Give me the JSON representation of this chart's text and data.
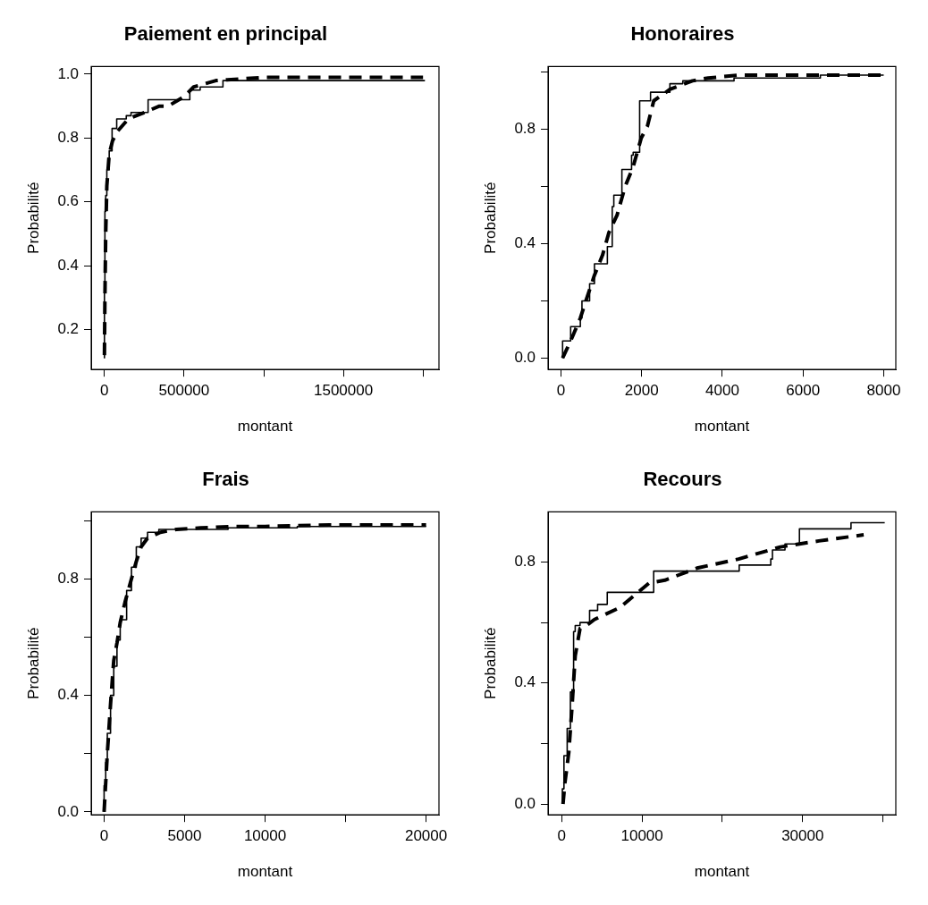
{
  "chart_data": [
    {
      "type": "line",
      "title": "Paiement en principal",
      "xlabel": "montant",
      "ylabel": "Probabilité",
      "xlim": [
        -83000,
        2100000
      ],
      "xticks": [
        0,
        500000,
        {
          "value": 1000000,
          "label": null
        },
        1500000,
        {
          "value": 2000000,
          "label": null
        }
      ],
      "ylim": [
        0.075,
        1.024
      ],
      "yticks": [
        0.2,
        0.4,
        0.6,
        0.8,
        {
          "value": 1,
          "label": "1.0"
        }
      ],
      "series": [
        {
          "type": "step",
          "color": "#000000",
          "x": [
            0,
            3000,
            8000,
            15000,
            30000,
            48000,
            77000,
            137000,
            167000,
            274000,
            333000,
            536000,
            601000,
            744000,
            780000,
            2012000
          ],
          "values": [
            0.11,
            0.35,
            0.57,
            0.62,
            0.7,
            0.76,
            0.83,
            0.86,
            0.87,
            0.88,
            0.92,
            0.92,
            0.95,
            0.96,
            0.98,
            0.98
          ]
        },
        {
          "type": "line",
          "line_style": "dashed",
          "color": "#000000",
          "x": [
            0,
            3000,
            8000,
            15000,
            30000,
            50000,
            80000,
            150000,
            250000,
            345000,
            400000,
            500000,
            560000,
            700000,
            1000000,
            1500000,
            2000000
          ],
          "values": [
            0.12,
            0.3,
            0.5,
            0.65,
            0.75,
            0.79,
            0.82,
            0.86,
            0.88,
            0.9,
            0.9,
            0.93,
            0.96,
            0.98,
            0.99,
            0.99,
            0.99
          ]
        }
      ]
    },
    {
      "type": "line",
      "title": "Honoraires",
      "xlabel": "montant",
      "ylabel": "Probabilité",
      "xlim": [
        -320,
        8300
      ],
      "xticks": [
        0,
        2000,
        4000,
        6000,
        8000
      ],
      "ylim": [
        -0.04,
        1.02
      ],
      "yticks": [
        {
          "value": 0,
          "label": "0.0"
        },
        {
          "value": 0.2,
          "label": null
        },
        0.4,
        {
          "value": 0.6,
          "label": null
        },
        0.8,
        {
          "value": 1,
          "label": null
        }
      ],
      "series": [
        {
          "type": "step",
          "color": "#000000",
          "x": [
            40,
            240,
            480,
            520,
            710,
            830,
            950,
            1150,
            1270,
            1310,
            1510,
            1750,
            1790,
            1950,
            2000,
            2220,
            2700,
            3020,
            3650,
            4290,
            4370,
            6430,
            8000
          ],
          "values": [
            0,
            0.06,
            0.11,
            0.14,
            0.2,
            0.26,
            0.33,
            0.33,
            0.39,
            0.53,
            0.57,
            0.66,
            0.71,
            0.72,
            0.9,
            0.9,
            0.93,
            0.96,
            0.97,
            0.97,
            0.98,
            0.98,
            0.99
          ]
        },
        {
          "type": "line",
          "line_style": "dashed",
          "color": "#000000",
          "x": [
            40,
            240,
            480,
            640,
            830,
            1030,
            1190,
            1390,
            1590,
            1790,
            1990,
            2140,
            2300,
            2700,
            3260,
            3650,
            4450,
            8000
          ],
          "values": [
            0,
            0.06,
            0.14,
            0.21,
            0.29,
            0.36,
            0.44,
            0.5,
            0.6,
            0.67,
            0.77,
            0.81,
            0.9,
            0.94,
            0.97,
            0.98,
            0.99,
            0.99
          ]
        }
      ]
    },
    {
      "type": "line",
      "title": "Frais",
      "xlabel": "montant",
      "ylabel": "Probabilité",
      "xlim": [
        -800,
        20800
      ],
      "xticks": [
        0,
        5000,
        10000,
        {
          "value": 15000,
          "label": null
        },
        20000
      ],
      "ylim": [
        -0.01,
        1.03
      ],
      "yticks": [
        {
          "value": 0,
          "label": "0.0"
        },
        {
          "value": 0.2,
          "label": null
        },
        0.4,
        {
          "value": 0.6,
          "label": null
        },
        0.8,
        {
          "value": 1,
          "label": null
        }
      ],
      "series": [
        {
          "type": "step",
          "color": "#000000",
          "x": [
            0,
            100,
            200,
            400,
            600,
            800,
            1000,
            1400,
            1700,
            2000,
            2300,
            2700,
            3400,
            4200,
            5200,
            5600,
            7700,
            10000,
            12000,
            15000,
            17800,
            20000
          ],
          "values": [
            0,
            0.09,
            0.17,
            0.27,
            0.4,
            0.5,
            0.59,
            0.66,
            0.76,
            0.84,
            0.91,
            0.94,
            0.96,
            0.97,
            0.97,
            0.97,
            0.97,
            0.975,
            0.975,
            0.98,
            0.98,
            0.98
          ]
        },
        {
          "type": "line",
          "line_style": "dashed",
          "color": "#000000",
          "x": [
            0,
            200,
            400,
            600,
            800,
            1000,
            1300,
            1700,
            2000,
            2300,
            2700,
            3500,
            4500,
            6000,
            8000,
            10000,
            14000,
            20000
          ],
          "values": [
            0,
            0.2,
            0.37,
            0.52,
            0.58,
            0.65,
            0.72,
            0.8,
            0.86,
            0.91,
            0.94,
            0.96,
            0.97,
            0.975,
            0.98,
            0.98,
            0.985,
            0.985
          ]
        }
      ]
    },
    {
      "type": "line",
      "title": "Recours",
      "xlabel": "montant",
      "ylabel": "Probabilité",
      "xlim": [
        -1700,
        41600
      ],
      "xticks": [
        0,
        10000,
        {
          "value": 20000,
          "label": null
        },
        30000,
        {
          "value": 40000,
          "label": null
        }
      ],
      "ylim": [
        -0.036,
        0.966
      ],
      "yticks": [
        {
          "value": 0,
          "label": "0.0"
        },
        {
          "value": 0.2,
          "label": null
        },
        0.4,
        {
          "value": 0.6,
          "label": null
        },
        0.8
      ],
      "series": [
        {
          "type": "step",
          "color": "#000000",
          "x": [
            80,
            280,
            680,
            1080,
            1480,
            1680,
            2280,
            3470,
            4470,
            5670,
            7860,
            11450,
            12850,
            22100,
            22230,
            26030,
            26240,
            27800,
            29600,
            30630,
            36020,
            36340,
            40220
          ],
          "values": [
            0,
            0.05,
            0.16,
            0.25,
            0.37,
            0.57,
            0.59,
            0.6,
            0.64,
            0.66,
            0.7,
            0.7,
            0.77,
            0.77,
            0.79,
            0.79,
            0.81,
            0.84,
            0.86,
            0.91,
            0.91,
            0.93,
            0.93
          ]
        },
        {
          "type": "line",
          "line_style": "dashed",
          "color": "#000000",
          "x": [
            160,
            400,
            880,
            1280,
            1680,
            2280,
            3070,
            4070,
            7260,
            10850,
            12850,
            16840,
            22030,
            27230,
            32010,
            37600
          ],
          "values": [
            0,
            0.07,
            0.17,
            0.32,
            0.49,
            0.58,
            0.59,
            0.61,
            0.65,
            0.73,
            0.74,
            0.78,
            0.81,
            0.85,
            0.87,
            0.89
          ]
        }
      ]
    }
  ]
}
